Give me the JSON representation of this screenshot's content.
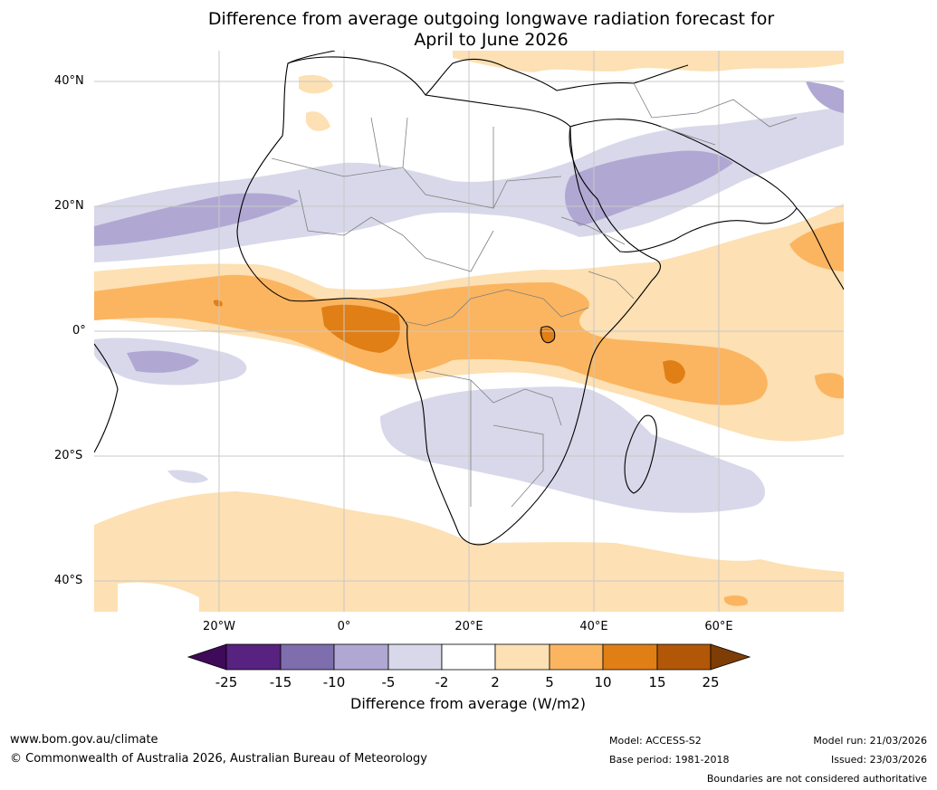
{
  "title": {
    "line1": "Difference from average outgoing longwave radiation forecast for",
    "line2": "April to June 2026"
  },
  "axes": {
    "lat_labels": [
      "40°N",
      "20°N",
      "0°",
      "20°S",
      "40°S"
    ],
    "lon_labels": [
      "20°W",
      "0°",
      "20°E",
      "40°E",
      "60°E"
    ]
  },
  "colorbar": {
    "title": "Difference from average (W/m2)",
    "tick_labels": [
      "-25",
      "-15",
      "-10",
      "-5",
      "-2",
      "2",
      "5",
      "10",
      "15",
      "25"
    ],
    "colors": [
      "#3f0a59",
      "#582280",
      "#7e6ead",
      "#b0a8d3",
      "#d8d8ea",
      "#ffffff",
      "#fde0b3",
      "#fbb560",
      "#df7f16",
      "#b25707",
      "#7e3d05"
    ]
  },
  "legend_colors": {
    "orange_light": "#fde0b3",
    "orange_mid": "#fbb560",
    "orange_dark": "#df7f16",
    "purple_light": "#d8d8ea",
    "purple_mid": "#b0a8d3"
  },
  "footer": {
    "website": "www.bom.gov.au/climate",
    "copyright": "© Commonwealth of Australia 2026, Australian Bureau of Meteorology",
    "model": "Model: ACCESS-S2",
    "base_period": "Base period: 1981-2018",
    "model_run": "Model run: 21/03/2026",
    "issued": "Issued: 23/03/2026",
    "disclaimer": "Boundaries are not considered authoritative"
  }
}
